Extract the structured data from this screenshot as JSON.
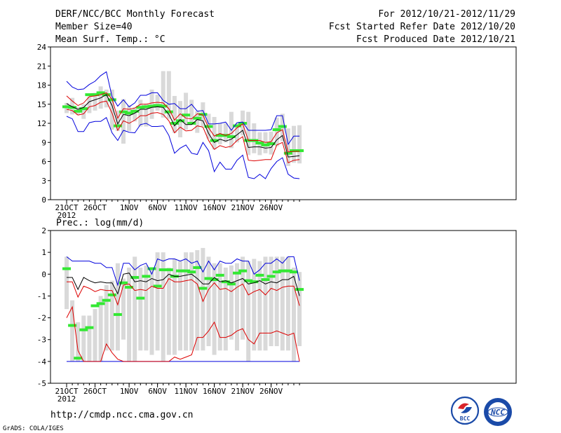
{
  "header": {
    "title": "DERF/NCC/BCC Monthly Forecast",
    "member_size": "Member Size=40",
    "variable1": "Mean Surf. Temp.: °C",
    "period": "For 2012/10/21-2012/11/29",
    "started": "Fcst Started Refer Date 2012/10/20",
    "produced": "Fcst Produced Date 2012/10/21"
  },
  "footer": {
    "url": "http://cmdp.ncc.cma.gov.cn",
    "grads": "GrADS: COLA/IGES",
    "logo1_text": "BCC",
    "logo2_text": "NCC"
  },
  "colors": {
    "box": "#d9d9d9",
    "median": "#33e833",
    "max": "#0000dd",
    "min": "#0000dd",
    "p90": "#dd0000",
    "p10": "#dd0000",
    "mean": "#000000"
  },
  "chart_data": [
    {
      "type": "box-whisker-ensemble",
      "title": "Mean Surf. Temp.: °C",
      "xlabel": "",
      "ylabel": "°C",
      "ylim": [
        0,
        24
      ],
      "yticks": [
        0,
        3,
        6,
        9,
        12,
        15,
        18,
        21,
        24
      ],
      "xtick_labels": [
        {
          "day": 0,
          "label": "21OCT",
          "sub": "2012"
        },
        {
          "day": 5,
          "label": "26OCT"
        },
        {
          "day": 11,
          "label": "1NOV"
        },
        {
          "day": 16,
          "label": "6NOV"
        },
        {
          "day": 21,
          "label": "11NOV"
        },
        {
          "day": 26,
          "label": "16NOV"
        },
        {
          "day": 31,
          "label": "21NOV"
        },
        {
          "day": 36,
          "label": "26NOV"
        }
      ],
      "box_low": [
        13.6,
        13.4,
        13.3,
        12.7,
        13.6,
        14.0,
        14.3,
        14.5,
        11.0,
        10.8,
        8.8,
        10.8,
        12.3,
        11.5,
        11.5,
        12.7,
        14.0,
        12.9,
        12.7,
        10.5,
        9.8,
        11.0,
        12.0,
        10.5,
        11.5,
        9.6,
        7.9,
        8.7,
        9.0,
        8.1,
        9.0,
        10.1,
        7.0,
        7.3,
        7.0,
        7.3,
        7.1,
        8.4,
        9.2,
        5.3,
        5.8,
        5.7
      ],
      "box_high": [
        15.2,
        16.0,
        14.6,
        15.0,
        16.2,
        16.8,
        17.8,
        17.3,
        17.3,
        14.0,
        15.8,
        14.8,
        14.5,
        15.7,
        15.1,
        17.3,
        16.5,
        20.2,
        20.2,
        16.3,
        15.5,
        16.8,
        15.7,
        13.9,
        15.3,
        13.5,
        13.0,
        12.0,
        12.0,
        13.8,
        12.0,
        14.0,
        13.8,
        12.0,
        10.6,
        10.6,
        10.7,
        12.9,
        13.5,
        11.2,
        11.6,
        11.7
      ],
      "median": [
        14.6,
        14.5,
        13.9,
        14.3,
        16.5,
        16.5,
        16.8,
        16.5,
        15.7,
        11.6,
        13.8,
        13.6,
        13.9,
        14.5,
        14.6,
        14.7,
        14.8,
        14.7,
        13.8,
        12.0,
        12.4,
        13.3,
        12.0,
        12.8,
        13.4,
        11.5,
        9.3,
        10.1,
        10.1,
        9.9,
        11.6,
        12.0,
        9.3,
        9.3,
        8.9,
        8.6,
        8.8,
        11.0,
        11.5,
        7.3,
        7.7,
        7.7
      ],
      "mean": [
        15.1,
        14.6,
        14.2,
        14.5,
        15.4,
        15.7,
        16.0,
        16.5,
        14.8,
        11.9,
        13.4,
        13.2,
        13.6,
        14.2,
        14.2,
        14.5,
        14.6,
        14.5,
        13.4,
        11.6,
        12.6,
        11.8,
        11.8,
        12.6,
        12.4,
        10.4,
        9.0,
        9.5,
        9.2,
        9.5,
        10.2,
        10.9,
        8.2,
        8.3,
        8.3,
        8.1,
        8.2,
        9.4,
        10.1,
        6.7,
        6.8,
        6.9
      ],
      "p90": [
        16.3,
        15.5,
        14.8,
        15.2,
        16.2,
        16.3,
        16.5,
        16.8,
        15.8,
        12.8,
        14.3,
        14.2,
        14.4,
        15.0,
        15.0,
        15.2,
        15.3,
        15.2,
        14.3,
        12.5,
        13.5,
        12.8,
        12.7,
        13.5,
        13.3,
        11.3,
        10.0,
        10.4,
        10.1,
        10.4,
        11.3,
        11.9,
        9.3,
        9.3,
        9.3,
        9.0,
        9.1,
        10.5,
        11.0,
        7.5,
        7.6,
        7.6
      ],
      "p10": [
        14.2,
        14.0,
        13.3,
        13.5,
        14.6,
        14.8,
        15.3,
        15.5,
        13.6,
        10.9,
        12.4,
        12.0,
        12.5,
        13.2,
        13.2,
        13.6,
        13.7,
        13.4,
        12.4,
        10.5,
        11.4,
        10.8,
        10.9,
        11.6,
        11.4,
        9.3,
        7.9,
        8.5,
        8.2,
        8.4,
        9.3,
        9.9,
        6.2,
        6.1,
        6.2,
        6.3,
        6.3,
        8.6,
        9.0,
        5.8,
        6.2,
        6.3
      ],
      "max": [
        18.6,
        17.7,
        17.3,
        17.4,
        18.1,
        18.6,
        19.5,
        20.1,
        16.2,
        14.7,
        15.7,
        14.6,
        15.2,
        16.4,
        16.4,
        16.8,
        16.8,
        15.6,
        15.0,
        15.1,
        14.3,
        14.3,
        15.0,
        13.9,
        14.0,
        11.9,
        11.9,
        12.0,
        12.2,
        10.9,
        12.1,
        12.2,
        10.9,
        10.9,
        10.9,
        10.9,
        11.0,
        13.2,
        13.2,
        8.7,
        10.0,
        10.0
      ],
      "min": [
        13.1,
        12.7,
        10.7,
        10.7,
        12.1,
        12.3,
        12.3,
        12.9,
        10.5,
        9.3,
        10.9,
        10.6,
        10.5,
        11.8,
        12.0,
        11.5,
        11.5,
        11.6,
        10.1,
        7.3,
        8.1,
        8.6,
        7.3,
        7.1,
        9.0,
        7.7,
        4.4,
        5.9,
        4.8,
        4.8,
        6.2,
        7.0,
        3.5,
        3.3,
        4.0,
        3.3,
        4.9,
        6.0,
        6.6,
        4.0,
        3.4,
        3.3
      ]
    },
    {
      "type": "box-whisker-ensemble",
      "title": "Prec.: log(mm/d)",
      "xlabel": "",
      "ylabel": "log(mm/d)",
      "ylim": [
        -5,
        2
      ],
      "yticks": [
        -5,
        -4,
        -3,
        -2,
        -1,
        0,
        1,
        2
      ],
      "xtick_labels": [
        {
          "day": 0,
          "label": "21OCT",
          "sub": "2012"
        },
        {
          "day": 5,
          "label": "26OCT"
        },
        {
          "day": 11,
          "label": "1NOV"
        },
        {
          "day": 16,
          "label": "6NOV"
        },
        {
          "day": 21,
          "label": "11NOV"
        },
        {
          "day": 26,
          "label": "16NOV"
        },
        {
          "day": 31,
          "label": "21NOV"
        },
        {
          "day": 36,
          "label": "26NOV"
        }
      ],
      "box_low": [
        -1.6,
        -4.0,
        -4.0,
        -4.0,
        -4.0,
        -4.0,
        -4.0,
        -3.5,
        -3.5,
        -3.5,
        -3.0,
        -4.0,
        -4.0,
        -3.5,
        -3.5,
        -3.7,
        -3.5,
        -4.0,
        -3.7,
        -3.7,
        -3.5,
        -3.5,
        -3.5,
        -3.5,
        -3.5,
        -3.3,
        -3.7,
        -3.5,
        -3.5,
        -3.0,
        -3.5,
        -3.0,
        -4.0,
        -3.5,
        -3.5,
        -3.5,
        -3.3,
        -3.3,
        -3.5,
        -3.5,
        -4.0,
        -3.3
      ],
      "box_high": [
        0.8,
        -1.2,
        -2.2,
        -1.9,
        -1.9,
        -1.6,
        -1.0,
        -0.5,
        -0.3,
        0.5,
        -0.2,
        0.3,
        0.8,
        0.3,
        0.4,
        0.3,
        1.0,
        1.0,
        0.3,
        0.7,
        0.6,
        1.0,
        1.0,
        1.1,
        1.2,
        0.8,
        0.5,
        0.5,
        0.3,
        0.4,
        0.5,
        0.8,
        0.6,
        0.7,
        0.6,
        0.8,
        0.8,
        0.8,
        0.8,
        0.8,
        0.3,
        0.1
      ],
      "median": [
        0.25,
        -2.35,
        -3.85,
        -2.55,
        -2.45,
        -1.45,
        -1.35,
        -1.2,
        -0.95,
        -1.85,
        -0.4,
        -0.6,
        -0.15,
        -1.1,
        -0.1,
        0.25,
        -0.55,
        0.2,
        0.2,
        -0.1,
        0.15,
        0.15,
        0.1,
        0.3,
        -0.65,
        -0.2,
        -0.25,
        -0.05,
        -0.35,
        -0.45,
        0.05,
        0.15,
        -0.3,
        -0.35,
        -0.05,
        -0.25,
        -0.1,
        0.1,
        0.15,
        0.15,
        0.1,
        -0.7
      ],
      "mean": [
        -0.15,
        -0.15,
        -0.7,
        -0.15,
        -0.3,
        -0.4,
        -0.35,
        -0.4,
        -0.4,
        -0.9,
        0.0,
        0.05,
        -0.35,
        -0.3,
        -0.35,
        -0.2,
        -0.3,
        -0.25,
        0.0,
        -0.1,
        -0.1,
        -0.05,
        0.0,
        -0.2,
        -0.45,
        -0.45,
        -0.15,
        -0.35,
        -0.3,
        -0.4,
        -0.3,
        -0.2,
        -0.45,
        -0.4,
        -0.3,
        -0.45,
        -0.35,
        -0.4,
        -0.25,
        -0.25,
        -0.1,
        -1.0
      ],
      "p90": [
        -0.35,
        -0.35,
        -1.05,
        -0.55,
        -0.65,
        -0.8,
        -0.7,
        -0.75,
        -0.75,
        -1.4,
        -0.5,
        -0.45,
        -0.75,
        -0.7,
        -0.75,
        -0.55,
        -0.65,
        -0.65,
        -0.2,
        -0.35,
        -0.35,
        -0.3,
        -0.25,
        -0.45,
        -1.25,
        -0.7,
        -0.4,
        -0.7,
        -0.65,
        -0.8,
        -0.6,
        -0.45,
        -0.95,
        -0.8,
        -0.7,
        -0.95,
        -0.65,
        -0.75,
        -0.6,
        -0.55,
        -0.55,
        -1.45
      ],
      "p10": [
        -2.0,
        -1.5,
        -3.5,
        -4.0,
        -4.0,
        -4.0,
        -4.0,
        -3.2,
        -3.6,
        -3.9,
        -4.0,
        -4.0,
        -4.0,
        -4.0,
        -4.0,
        -4.0,
        -4.0,
        -4.0,
        -4.0,
        -3.8,
        -3.9,
        -3.8,
        -3.7,
        -2.9,
        -2.9,
        -2.6,
        -2.2,
        -2.9,
        -2.9,
        -2.8,
        -2.6,
        -2.5,
        -3.0,
        -3.2,
        -2.7,
        -2.7,
        -2.7,
        -2.6,
        -2.7,
        -2.8,
        -2.7,
        -4.0
      ],
      "max": [
        0.8,
        0.6,
        0.6,
        0.6,
        0.6,
        0.5,
        0.5,
        0.3,
        0.3,
        -0.5,
        0.5,
        0.5,
        0.2,
        0.4,
        0.5,
        0.0,
        0.7,
        0.6,
        0.7,
        0.7,
        0.6,
        0.7,
        0.5,
        0.6,
        0.1,
        0.6,
        0.2,
        0.6,
        0.5,
        0.5,
        0.7,
        0.6,
        0.6,
        0.0,
        0.2,
        0.5,
        0.5,
        0.7,
        0.5,
        0.8,
        0.8,
        -0.3
      ],
      "min": [
        -4.0,
        -4.0,
        -4.0,
        -4.0,
        -4.0,
        -4.0,
        -4.0,
        -4.0,
        -4.0,
        -4.0,
        -4.0,
        -4.0,
        -4.0,
        -4.0,
        -4.0,
        -4.0,
        -4.0,
        -4.0,
        -4.0,
        -4.0,
        -4.0,
        -4.0,
        -4.0,
        -4.0,
        -4.0,
        -4.0,
        -4.0,
        -4.0,
        -4.0,
        -4.0,
        -4.0,
        -4.0,
        -4.0,
        -4.0,
        -4.0,
        -4.0,
        -4.0,
        -4.0,
        -4.0,
        -4.0,
        -4.0,
        -4.0
      ]
    }
  ]
}
